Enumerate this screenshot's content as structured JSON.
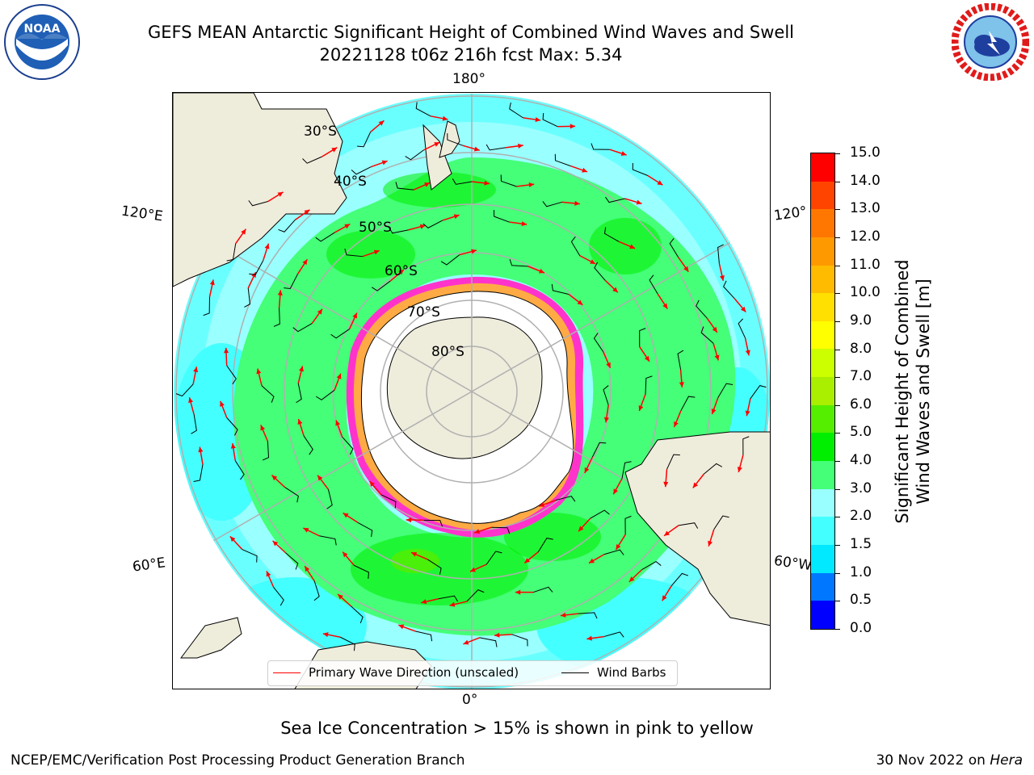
{
  "title": {
    "line1": "GEFS MEAN Antarctic Significant Height of Combined Wind Waves and Swell",
    "line2": "20221128 t06z 216h fcst   Max: 5.34"
  },
  "logos": {
    "left": "noaa-logo",
    "right": "nws-logo"
  },
  "map": {
    "projection": "south-polar-stereographic",
    "longitude_labels": {
      "top": "180°",
      "bottom": "0°",
      "upper_left": "120°E",
      "lower_left": "60°E",
      "upper_right": "120°",
      "lower_right": "60°W"
    },
    "latitude_labels": [
      "30°S",
      "40°S",
      "50°S",
      "60°S",
      "70°S",
      "80°S"
    ],
    "colors": {
      "ocean_low": "#00ffff",
      "ocean_mid": "#99ffff",
      "ocean_band": "#44ff77",
      "land": "#eeecdb",
      "ice_edge": "#ff33cc",
      "ice_inner": "#ffaa44",
      "antarctica": "#ffffff"
    }
  },
  "legend": {
    "wave_label": "Primary Wave Direction (unscaled)",
    "wave_color": "#ff0000",
    "barb_label": "Wind Barbs",
    "barb_color": "#000000"
  },
  "colorbar": {
    "label_line1": "Significant Height of Combined",
    "label_line2": "Wind Waves and Swell [m]",
    "ticks": [
      "0.0",
      "0.5",
      "1.0",
      "1.5",
      "2.0",
      "3.0",
      "4.0",
      "5.0",
      "6.0",
      "7.0",
      "8.0",
      "9.0",
      "10.0",
      "11.0",
      "12.0",
      "13.0",
      "14.0",
      "15.0"
    ],
    "colors": [
      "#0000ff",
      "#0077ff",
      "#00e9ff",
      "#44ffff",
      "#99ffff",
      "#44ff77",
      "#00ee00",
      "#55ee00",
      "#aaee00",
      "#ccff00",
      "#ffff00",
      "#ffe000",
      "#ffbb00",
      "#ff9900",
      "#ff7700",
      "#ff4400",
      "#ff0000"
    ]
  },
  "subnote": "Sea Ice Concentration > 15% is shown in pink to yellow",
  "footer": {
    "left": "NCEP/EMC/Verification Post Processing Product Generation Branch",
    "right_date": "30 Nov 2022 on ",
    "right_host": "Hera"
  }
}
